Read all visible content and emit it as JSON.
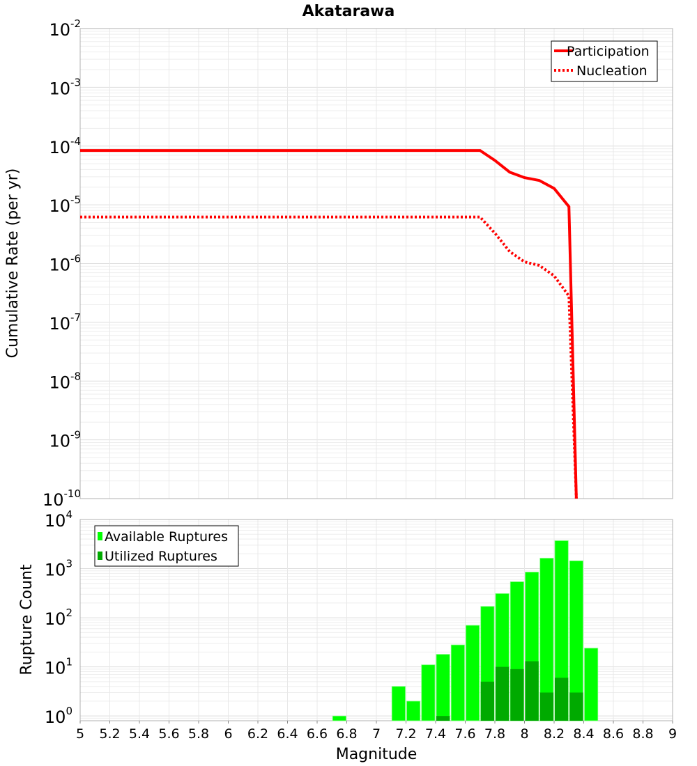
{
  "chart_data": [
    {
      "type": "line",
      "title": "Akatarawa",
      "xlabel": "Magnitude",
      "ylabel": "Cumulative Rate (per yr)",
      "xlim": [
        5,
        9
      ],
      "ylim": [
        1e-10,
        0.01
      ],
      "yscale": "log",
      "grid": true,
      "legend_position": "top-right",
      "y_tick_exponents": [
        -10,
        -9,
        -8,
        -7,
        -6,
        -5,
        -4,
        -3,
        -2
      ],
      "series": [
        {
          "name": "Participation",
          "style": "solid",
          "color": "#ff0000",
          "x": [
            5.0,
            7.7,
            7.8,
            7.9,
            8.0,
            8.1,
            8.2,
            8.3,
            8.35
          ],
          "y": [
            8.4e-05,
            8.4e-05,
            5.7e-05,
            3.6e-05,
            2.9e-05,
            2.6e-05,
            1.9e-05,
            9.3e-06,
            1e-10
          ]
        },
        {
          "name": "Nucleation",
          "style": "dotted",
          "color": "#ff0000",
          "x": [
            5.0,
            7.7,
            7.8,
            7.9,
            8.0,
            8.1,
            8.2,
            8.3,
            8.35
          ],
          "y": [
            6.2e-06,
            6.2e-06,
            3.3e-06,
            1.6e-06,
            1.07e-06,
            9.3e-07,
            6.2e-07,
            2.8e-07,
            1e-10
          ]
        }
      ]
    },
    {
      "type": "bar",
      "xlabel": "Magnitude",
      "ylabel": "Rupture Count",
      "xlim": [
        5,
        9
      ],
      "ylim": [
        0.8,
        10000
      ],
      "yscale": "log",
      "grid": true,
      "legend_position": "top-left",
      "bin_width": 0.1,
      "y_tick_exponents": [
        0,
        1,
        2,
        3,
        4
      ],
      "x_ticks": [
        "5",
        "5.2",
        "5.4",
        "5.6",
        "5.8",
        "6",
        "6.2",
        "6.4",
        "6.6",
        "6.8",
        "7",
        "7.2",
        "7.4",
        "7.6",
        "7.8",
        "8",
        "8.2",
        "8.4",
        "8.6",
        "8.8",
        "9"
      ],
      "series": [
        {
          "name": "Available Ruptures",
          "color": "#00ff00",
          "x": [
            6.75,
            7.15,
            7.25,
            7.35,
            7.45,
            7.55,
            7.65,
            7.75,
            7.85,
            7.95,
            8.05,
            8.15,
            8.25,
            8.35,
            8.45
          ],
          "values": [
            1,
            4,
            2,
            11,
            18,
            28,
            70,
            170,
            310,
            540,
            850,
            1630,
            3700,
            1440,
            24
          ]
        },
        {
          "name": "Utilized Ruptures",
          "color": "#00aa00",
          "x": [
            7.45,
            7.75,
            7.85,
            7.95,
            8.05,
            8.15,
            8.25,
            8.35
          ],
          "values": [
            1,
            5,
            10,
            9,
            13,
            3,
            6,
            3
          ]
        }
      ]
    }
  ]
}
